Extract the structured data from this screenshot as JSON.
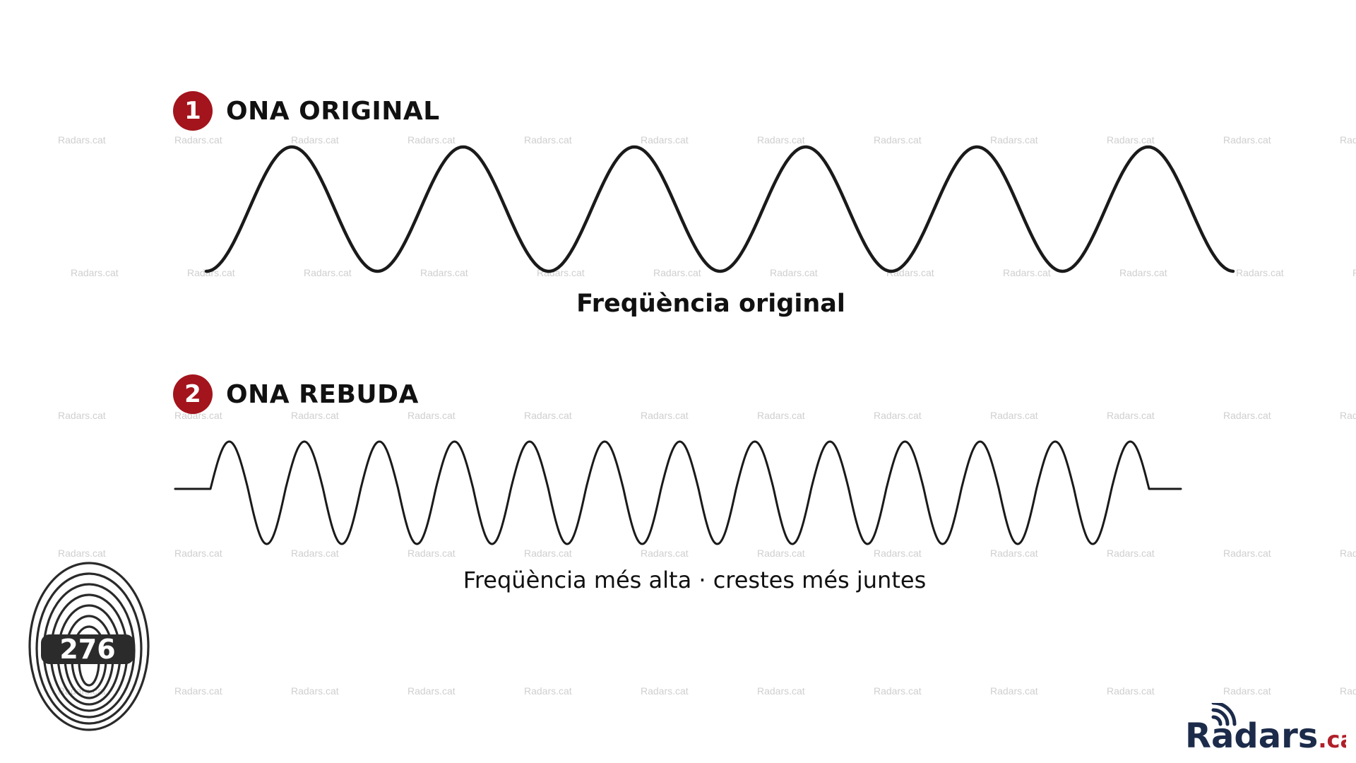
{
  "section1": {
    "number": "1",
    "title": "ONA ORIGINAL",
    "caption": "Freqüència original"
  },
  "section2": {
    "number": "2",
    "title": "ONA REBUDA",
    "caption": "Freqüència més alta · crestes més juntes"
  },
  "watermark": "Radars.cat",
  "badge_color": "#a3141c",
  "fingerprint": {
    "icon": "fingerprint-icon",
    "number": "276"
  },
  "logo": {
    "icon": "radio-signal-icon",
    "main": "Radars",
    "suffix": ".cat",
    "main_color": "#1c2b4a",
    "suffix_color": "#b0202a"
  }
}
